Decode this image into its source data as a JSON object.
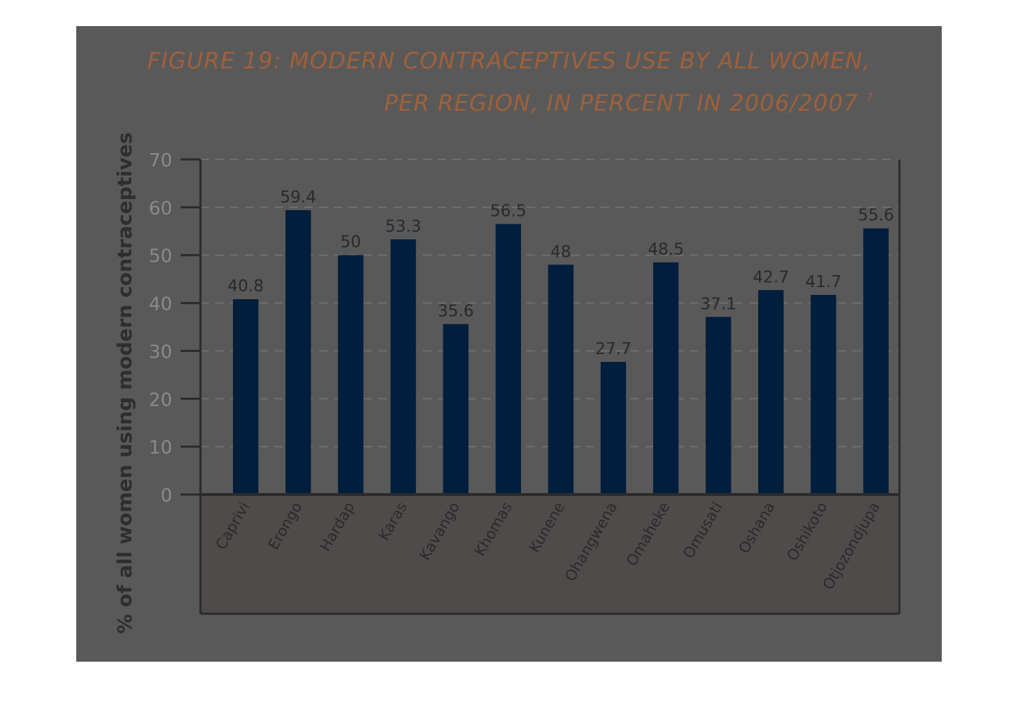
{
  "colors": {
    "panel": "#595959",
    "plot_lower": "#4f4b4b",
    "bar": "#021e3d",
    "axis": "#2b2b2b",
    "grid": "#6f6f6f",
    "title": "#a0603a"
  },
  "title_line1": "FIGURE 19: MODERN CONTRACEPTIVES USE BY ALL WOMEN,",
  "title_line2": "PER REGION, IN PERCENT IN 2006/2007",
  "title_footnote": "7",
  "chart_data": {
    "type": "bar",
    "title": "FIGURE 19: MODERN CONTRACEPTIVES USE BY ALL WOMEN, PER REGION, IN PERCENT IN 2006/2007",
    "xlabel": "",
    "ylabel": "% of all women using modern contraceptives",
    "ylim": [
      0,
      70
    ],
    "yticks": [
      0,
      10,
      20,
      30,
      40,
      50,
      60,
      70
    ],
    "grid": true,
    "categories": [
      "Caprivi",
      "Erongo",
      "Hardap",
      "Karas",
      "Kavango",
      "Khomas",
      "Kunene",
      "Ohangwena",
      "Omaheke",
      "Omusati",
      "Oshana",
      "Oshikoto",
      "Otjozondjupa"
    ],
    "values": [
      40.8,
      59.4,
      50,
      53.3,
      35.6,
      56.5,
      48,
      27.7,
      48.5,
      37.1,
      42.7,
      41.7,
      55.6
    ],
    "value_labels": [
      "40.8",
      "59.4",
      "50",
      "53.3",
      "35.6",
      "56.5",
      "48",
      "27.7",
      "48.5",
      "37.1",
      "42.7",
      "41.7",
      "55.6"
    ]
  }
}
